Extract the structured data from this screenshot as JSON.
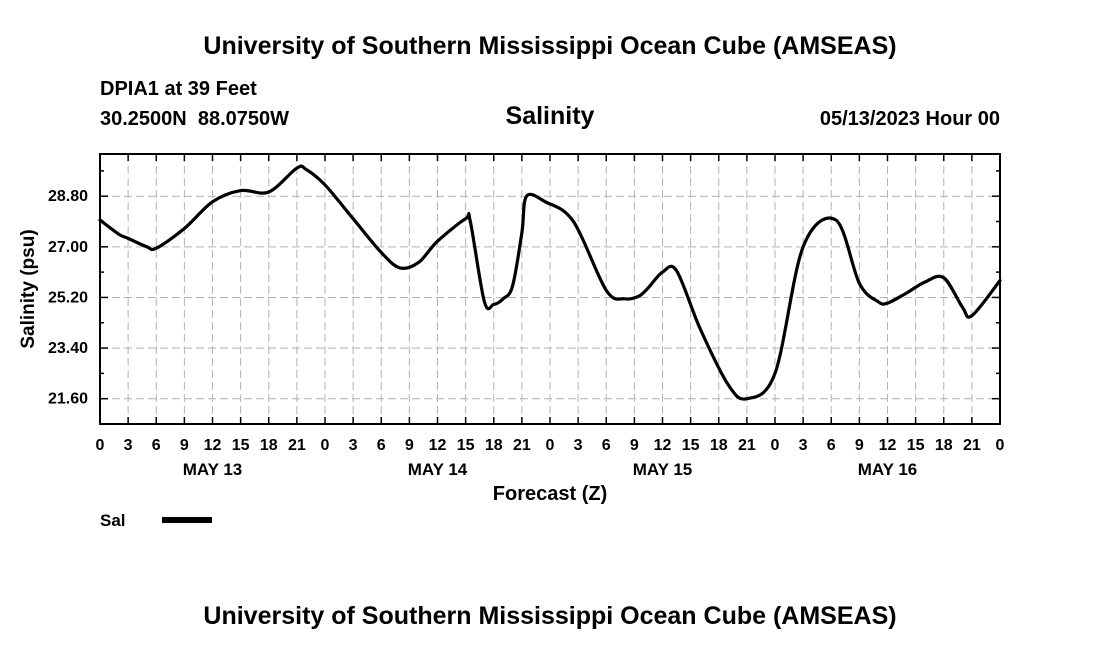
{
  "header": {
    "title": "University of Southern Mississippi Ocean Cube (AMSEAS)",
    "station": "DPIA1 at 39 Feet",
    "coords": "30.2500N  88.0750W",
    "variable": "Salinity",
    "datetime": "05/13/2023 Hour 00"
  },
  "footer": {
    "title": "University of Southern Mississippi Ocean Cube (AMSEAS)"
  },
  "chart_data": {
    "type": "line",
    "title": "Salinity",
    "xlabel": "Forecast (Z)",
    "ylabel": "Salinity (psu)",
    "xlim": [
      0,
      96
    ],
    "ylim": [
      20.7,
      30.3
    ],
    "yticks": [
      21.6,
      23.4,
      25.2,
      27.0,
      28.8
    ],
    "ytick_labels": [
      "21.60",
      "23.40",
      "25.20",
      "27.00",
      "28.80"
    ],
    "xtick_hours": [
      0,
      3,
      6,
      9,
      12,
      15,
      18,
      21,
      24,
      27,
      30,
      33,
      36,
      39,
      42,
      45,
      48,
      51,
      54,
      57,
      60,
      63,
      66,
      69,
      72,
      75,
      78,
      81,
      84,
      87,
      90,
      93,
      96
    ],
    "xtick_labels": [
      "0",
      "3",
      "6",
      "9",
      "12",
      "15",
      "18",
      "21",
      "0",
      "3",
      "6",
      "9",
      "12",
      "15",
      "18",
      "21",
      "0",
      "3",
      "6",
      "9",
      "12",
      "15",
      "18",
      "21",
      "0",
      "3",
      "6",
      "9",
      "12",
      "15",
      "18",
      "21",
      "0"
    ],
    "day_labels": [
      {
        "hour": 12,
        "label": "MAY 13"
      },
      {
        "hour": 36,
        "label": "MAY 14"
      },
      {
        "hour": 60,
        "label": "MAY 15"
      },
      {
        "hour": 84,
        "label": "MAY 16"
      }
    ],
    "grid": true,
    "legend": "bottom-left",
    "series": [
      {
        "name": "Sal",
        "color": "#000000",
        "x": [
          0,
          2,
          3,
          5,
          6,
          9,
          12,
          15,
          18,
          21,
          22,
          24,
          27,
          30,
          32,
          34,
          36,
          39,
          39.5,
          41,
          42,
          43,
          44,
          45,
          45.5,
          47.5,
          50.5,
          54,
          56,
          57.5,
          58.5,
          60,
          61.5,
          64,
          67,
          69,
          72,
          75,
          78.5,
          81,
          83,
          84,
          86,
          88,
          90,
          92,
          93,
          96
        ],
        "values": [
          27.95,
          27.45,
          27.3,
          27.0,
          26.95,
          27.65,
          28.6,
          29.0,
          28.95,
          29.8,
          29.75,
          29.2,
          28.0,
          26.8,
          26.25,
          26.45,
          27.2,
          28.0,
          27.9,
          25.05,
          24.95,
          25.15,
          25.6,
          27.5,
          28.8,
          28.6,
          27.9,
          25.45,
          25.15,
          25.25,
          25.55,
          26.1,
          26.15,
          24.1,
          22.1,
          21.6,
          22.5,
          27.0,
          27.95,
          25.7,
          25.05,
          25.0,
          25.35,
          25.75,
          25.9,
          24.85,
          24.55,
          25.8
        ]
      }
    ]
  }
}
